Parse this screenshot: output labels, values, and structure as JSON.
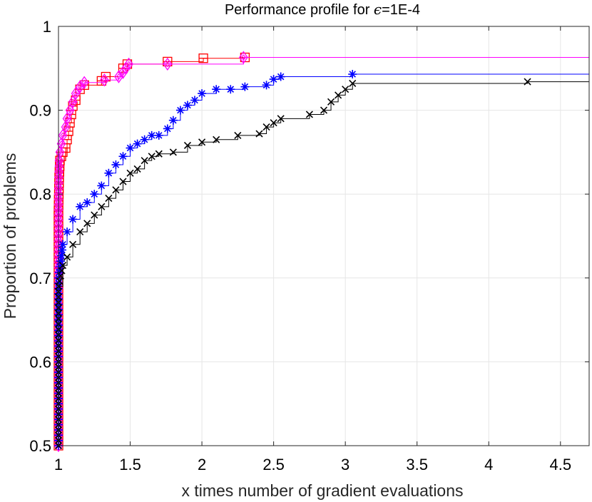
{
  "chart_data": {
    "type": "line",
    "title": "Performance profile for ",
    "title_symbol": "ϵ",
    "title_suffix": "=1E-4",
    "xlabel": "x times number of gradient evaluations",
    "ylabel": "Proportion of problems",
    "xlim": [
      1,
      4.7
    ],
    "ylim": [
      0.5,
      1
    ],
    "xticks": [
      1,
      1.5,
      2,
      2.5,
      3,
      3.5,
      4,
      4.5
    ],
    "xtick_labels": [
      "1",
      "1.5",
      "2",
      "2.5",
      "3",
      "3.5",
      "4",
      "4.5"
    ],
    "yticks": [
      0.5,
      0.6,
      0.7,
      0.8,
      0.9,
      1
    ],
    "ytick_labels": [
      "0.5",
      "0.6",
      "0.7",
      "0.8",
      "0.9",
      "1"
    ],
    "grid": true,
    "legend": "none",
    "series": [
      {
        "color": "#ff0000",
        "marker": "square",
        "points": [
          [
            1.0,
            0.5
          ],
          [
            1.0,
            0.6
          ],
          [
            1.0,
            0.7
          ],
          [
            1.0,
            0.78
          ],
          [
            1.005,
            0.82
          ],
          [
            1.01,
            0.84
          ],
          [
            1.02,
            0.845
          ],
          [
            1.03,
            0.85
          ],
          [
            1.05,
            0.855
          ],
          [
            1.06,
            0.865
          ],
          [
            1.07,
            0.875
          ],
          [
            1.08,
            0.885
          ],
          [
            1.09,
            0.895
          ],
          [
            1.1,
            0.905
          ],
          [
            1.12,
            0.912
          ],
          [
            1.15,
            0.925
          ],
          [
            1.18,
            0.93
          ],
          [
            1.3,
            0.935
          ],
          [
            1.33,
            0.94
          ],
          [
            1.45,
            0.95
          ],
          [
            1.48,
            0.955
          ],
          [
            1.76,
            0.958
          ],
          [
            2.01,
            0.962
          ],
          [
            2.3,
            0.963
          ],
          [
            4.7,
            0.963
          ]
        ]
      },
      {
        "color": "#ff00ff",
        "marker": "diamond",
        "points": [
          [
            1.0,
            0.5
          ],
          [
            1.0,
            0.6
          ],
          [
            1.0,
            0.7
          ],
          [
            1.0,
            0.8
          ],
          [
            1.005,
            0.84
          ],
          [
            1.01,
            0.85
          ],
          [
            1.02,
            0.86
          ],
          [
            1.03,
            0.87
          ],
          [
            1.05,
            0.88
          ],
          [
            1.06,
            0.89
          ],
          [
            1.08,
            0.9
          ],
          [
            1.1,
            0.91
          ],
          [
            1.12,
            0.92
          ],
          [
            1.15,
            0.928
          ],
          [
            1.18,
            0.933
          ],
          [
            1.32,
            0.936
          ],
          [
            1.42,
            0.94
          ],
          [
            1.45,
            0.945
          ],
          [
            1.47,
            0.95
          ],
          [
            1.49,
            0.955
          ],
          [
            1.76,
            0.955
          ],
          [
            2.29,
            0.963
          ],
          [
            4.7,
            0.964
          ]
        ]
      },
      {
        "color": "#0000ff",
        "marker": "asterisk",
        "points": [
          [
            1.0,
            0.5
          ],
          [
            1.0,
            0.6
          ],
          [
            1.0,
            0.7
          ],
          [
            1.03,
            0.74
          ],
          [
            1.06,
            0.755
          ],
          [
            1.1,
            0.77
          ],
          [
            1.15,
            0.785
          ],
          [
            1.2,
            0.79
          ],
          [
            1.25,
            0.8
          ],
          [
            1.3,
            0.81
          ],
          [
            1.35,
            0.825
          ],
          [
            1.4,
            0.835
          ],
          [
            1.45,
            0.845
          ],
          [
            1.5,
            0.855
          ],
          [
            1.55,
            0.86
          ],
          [
            1.6,
            0.865
          ],
          [
            1.65,
            0.87
          ],
          [
            1.7,
            0.87
          ],
          [
            1.76,
            0.878
          ],
          [
            1.8,
            0.888
          ],
          [
            1.85,
            0.9
          ],
          [
            1.9,
            0.906
          ],
          [
            1.95,
            0.912
          ],
          [
            2.0,
            0.92
          ],
          [
            2.1,
            0.925
          ],
          [
            2.2,
            0.925
          ],
          [
            2.3,
            0.928
          ],
          [
            2.45,
            0.93
          ],
          [
            2.5,
            0.937
          ],
          [
            2.55,
            0.94
          ],
          [
            3.05,
            0.943
          ],
          [
            4.7,
            0.944
          ]
        ]
      },
      {
        "color": "#000000",
        "marker": "x",
        "points": [
          [
            1.0,
            0.5
          ],
          [
            1.0,
            0.6
          ],
          [
            1.0,
            0.69
          ],
          [
            1.03,
            0.715
          ],
          [
            1.06,
            0.725
          ],
          [
            1.1,
            0.74
          ],
          [
            1.15,
            0.755
          ],
          [
            1.2,
            0.765
          ],
          [
            1.25,
            0.775
          ],
          [
            1.3,
            0.785
          ],
          [
            1.35,
            0.795
          ],
          [
            1.4,
            0.805
          ],
          [
            1.45,
            0.815
          ],
          [
            1.5,
            0.825
          ],
          [
            1.55,
            0.83
          ],
          [
            1.6,
            0.84
          ],
          [
            1.65,
            0.845
          ],
          [
            1.7,
            0.848
          ],
          [
            1.8,
            0.85
          ],
          [
            1.9,
            0.858
          ],
          [
            2.0,
            0.862
          ],
          [
            2.1,
            0.865
          ],
          [
            2.25,
            0.87
          ],
          [
            2.4,
            0.872
          ],
          [
            2.45,
            0.88
          ],
          [
            2.5,
            0.885
          ],
          [
            2.55,
            0.89
          ],
          [
            2.75,
            0.895
          ],
          [
            2.85,
            0.9
          ],
          [
            2.9,
            0.91
          ],
          [
            2.95,
            0.918
          ],
          [
            3.0,
            0.925
          ],
          [
            3.05,
            0.932
          ],
          [
            4.27,
            0.934
          ],
          [
            4.7,
            0.936
          ]
        ]
      }
    ]
  }
}
